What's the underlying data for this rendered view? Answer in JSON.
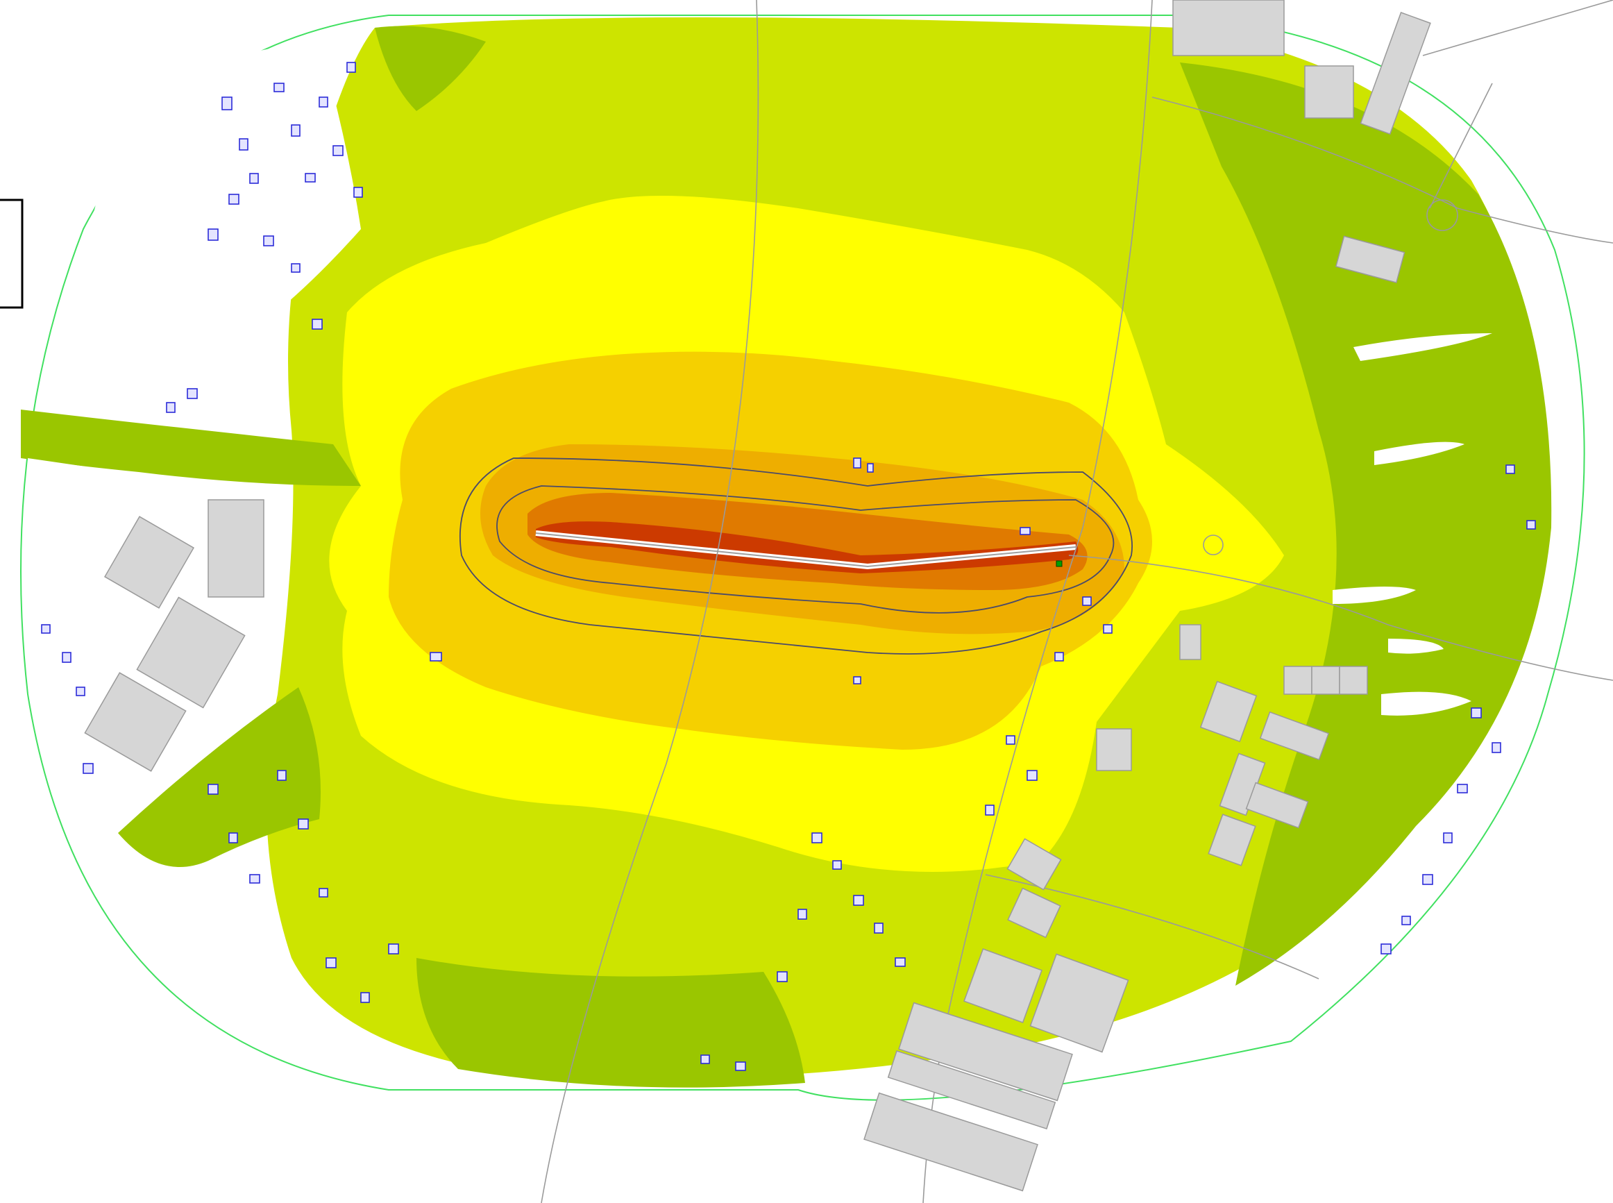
{
  "map": {
    "type": "noise contour map",
    "colors": {
      "background": "#ffffff",
      "level_1": "#9ac600",
      "level_2": "#cde400",
      "level_3": "#ffff00",
      "level_4": "#f5d000",
      "level_5": "#eeae00",
      "level_6": "#e07a00",
      "level_7": "#cc3a00",
      "boundary": "#40e060",
      "building_outline": "#2b2bd8",
      "industrial_building": "#d6d6d6",
      "road": "#9a9a9a",
      "contour_line": "#4a4a6a"
    },
    "legend": {}
  }
}
